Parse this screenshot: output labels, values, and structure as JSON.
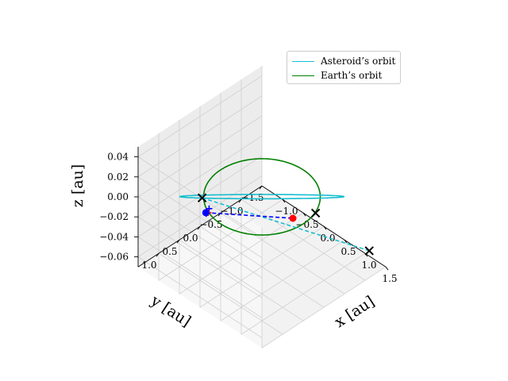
{
  "chart_data": {
    "type": "line3d",
    "title": "",
    "xlabel": "x [au]",
    "ylabel": "y [au]",
    "zlabel": "z [au]",
    "xlim": [
      -1.5,
      1.5
    ],
    "ylim": [
      -1.5,
      1.5
    ],
    "zlim": [
      -0.07,
      0.05
    ],
    "x_ticks": [
      "−1.0",
      "−0.5",
      "0.0",
      "0.5",
      "1.0",
      "1.5"
    ],
    "y_ticks": [
      "1.0",
      "0.5",
      "0.0",
      "−0.5",
      "−1.0",
      "−1.5"
    ],
    "z_ticks": [
      "0.04",
      "0.02",
      "0.00",
      "−0.02",
      "−0.04",
      "−0.06"
    ],
    "grid": true,
    "legend_position": "top-right",
    "series": [
      {
        "name": "Asteroid’s orbit",
        "color": "#17becf",
        "kind": "ellipse",
        "semi_major_axis": 1.5,
        "eccentricity": 0.35,
        "inclination_deg": 2.6
      },
      {
        "name": "Earth’s orbit",
        "color": "#008000",
        "kind": "circle",
        "radius": 1.0
      }
    ],
    "markers": {
      "crosses": [
        {
          "x": -0.15,
          "y": 1.3,
          "z": 0.03
        },
        {
          "x": 0.95,
          "y": -0.35,
          "z": 0.0
        },
        {
          "x": 1.65,
          "y": -0.95,
          "z": -0.035
        }
      ],
      "points": [
        {
          "x": -0.48,
          "y": 0.88,
          "z": -0.005,
          "color": "#0000ff"
        },
        {
          "x": 1.05,
          "y": 0.3,
          "z": 0.015,
          "color": "#ff0000"
        }
      ],
      "small_plus": [
        {
          "x": -0.2,
          "y": 1.08,
          "z": 0.012,
          "color": "#0000ff"
        },
        {
          "x": -0.3,
          "y": 1.0,
          "z": 0.003,
          "color": "#ff0000"
        },
        {
          "x": -0.4,
          "y": 0.95,
          "z": -0.002,
          "color": "#0000ff"
        }
      ]
    },
    "dashed_lines": [
      {
        "color": "#17becf",
        "from": 0,
        "to": 2
      },
      {
        "color": "#0000ff",
        "from_point": 0,
        "to_point": 1
      }
    ]
  }
}
